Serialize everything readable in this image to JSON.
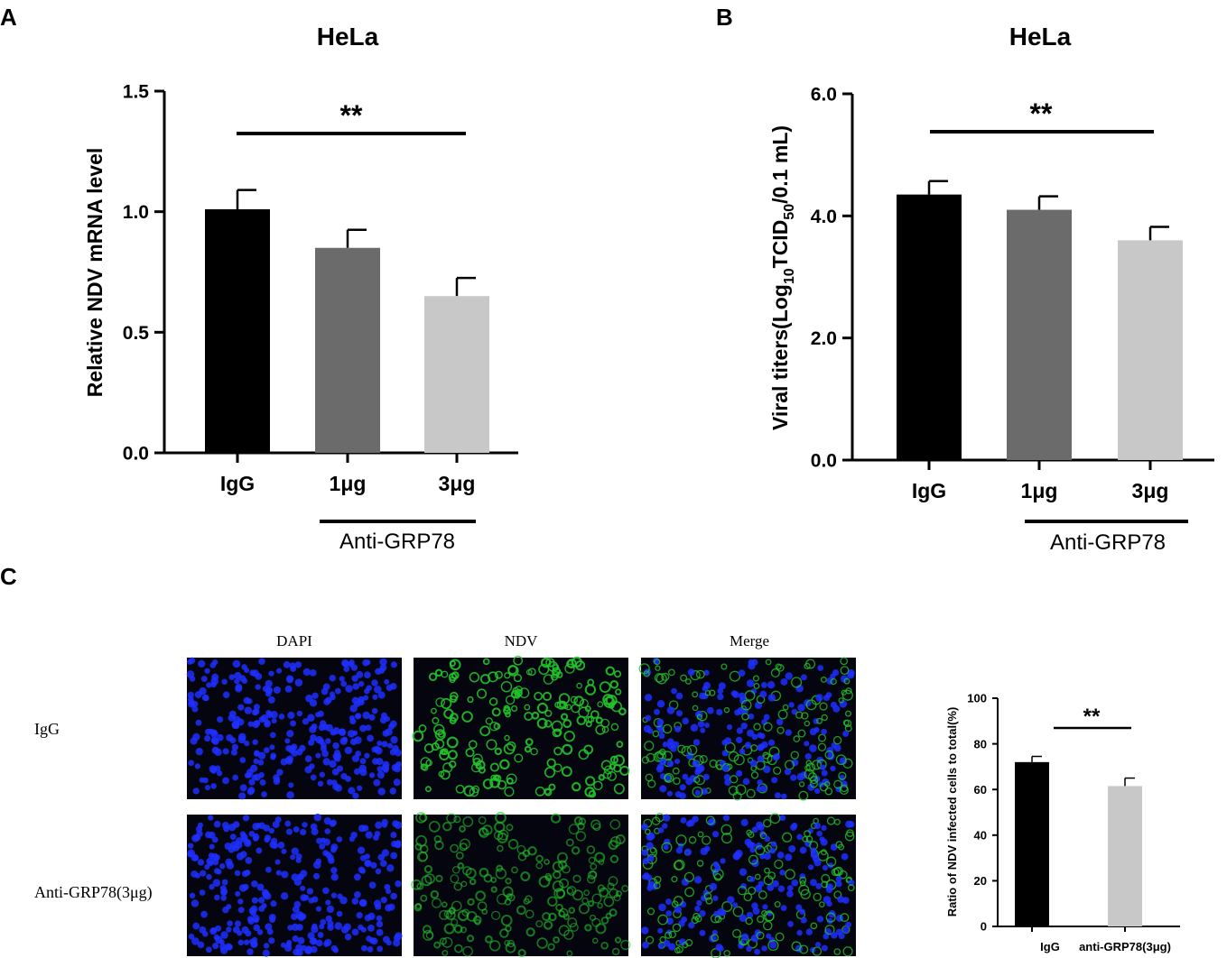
{
  "panels": {
    "a": "A",
    "b": "B",
    "c": "C"
  },
  "chart_data": [
    {
      "id": "A",
      "type": "bar",
      "title": "HeLa",
      "ylabel": "Relative NDV mRNA level",
      "xlabel": "",
      "ylim": [
        0,
        1.5
      ],
      "yticks": [
        0.0,
        0.5,
        1.0,
        1.5
      ],
      "ytick_labels": [
        "0.0",
        "0.5",
        "1.0",
        "1.5"
      ],
      "categories": [
        "IgG",
        "1μg",
        "3μg"
      ],
      "values": [
        1.01,
        0.85,
        0.65
      ],
      "errors": [
        0.08,
        0.075,
        0.075
      ],
      "colors": [
        "#000000",
        "#6b6b6b",
        "#c8c8c8"
      ],
      "group_label": "Anti-GRP78",
      "significance": "**"
    },
    {
      "id": "B",
      "type": "bar",
      "title": "HeLa",
      "ylabel_parts": {
        "pre": "Viral titers(Log",
        "sub1": "10",
        "mid": "TCID",
        "sub2": "50",
        "post": "/0.1 mL)"
      },
      "xlabel": "",
      "ylim": [
        0,
        6.0
      ],
      "yticks": [
        0.0,
        2.0,
        4.0,
        6.0
      ],
      "ytick_labels": [
        "0.0",
        "2.0",
        "4.0",
        "6.0"
      ],
      "categories": [
        "IgG",
        "1μg",
        "3μg"
      ],
      "values": [
        4.35,
        4.1,
        3.6
      ],
      "errors": [
        0.22,
        0.22,
        0.22
      ],
      "colors": [
        "#000000",
        "#6b6b6b",
        "#c8c8c8"
      ],
      "group_label": "Anti-GRP78",
      "significance": "**"
    },
    {
      "id": "C-chart",
      "type": "bar",
      "title": "",
      "ylabel": "Ratio of NDV infected cells to total(%)",
      "xlabel": "",
      "ylim": [
        0,
        100
      ],
      "yticks": [
        0,
        20,
        40,
        60,
        80,
        100
      ],
      "ytick_labels": [
        "0",
        "20",
        "40",
        "60",
        "80",
        "100"
      ],
      "categories": [
        "IgG",
        "anti-GRP78(3μg)"
      ],
      "values": [
        72,
        61.5
      ],
      "errors": [
        2.5,
        3.5
      ],
      "colors": [
        "#000000",
        "#c8c8c8"
      ],
      "significance": "**"
    }
  ],
  "microscopy": {
    "columns": [
      "DAPI",
      "NDV",
      "Merge"
    ],
    "rows": [
      "IgG",
      "Anti-GRP78(3μg)"
    ],
    "colors": {
      "background": "#050510",
      "dapi": "#1f2fff",
      "ndv": "#22c42a"
    }
  }
}
